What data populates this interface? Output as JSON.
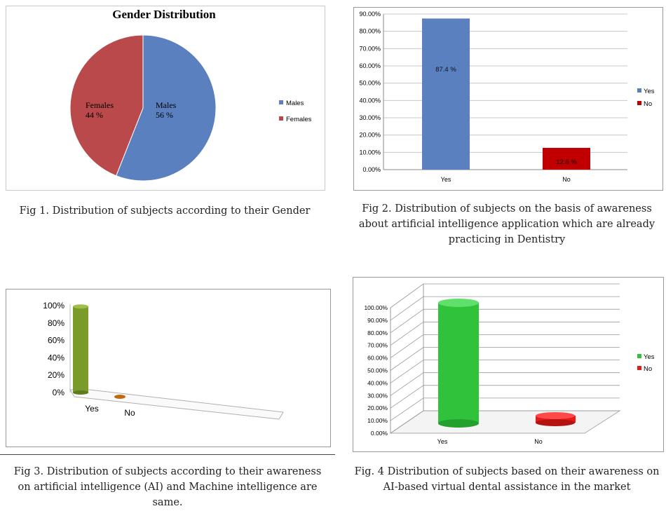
{
  "colors": {
    "males": "#5a80bf",
    "females": "#b9494a",
    "yes_blue": "#5a80bf",
    "no_red": "#c00000",
    "yes_olive": "#7a9a2a",
    "no_orange": "#c06a10",
    "yes_green": "#2fc23a",
    "no_red_bright": "#e21b1b"
  },
  "captions": {
    "fig1": "Fig 1. Distribution of subjects according to their Gender",
    "fig2_lines": [
      "Fig 2. Distribution of subjects on the basis of awareness",
      "about artificial intelligence application which are already",
      "practicing in Dentistry"
    ],
    "fig3_lines": [
      "Fig 3. Distribution of subjects according to their awareness",
      "on artificial intelligence (AI) and Machine intelligence are",
      "same."
    ],
    "fig4_lines": [
      "Fig. 4 Distribution of subjects based on their awareness on",
      "AI-based virtual dental assistance in the market"
    ]
  },
  "chart_data": [
    {
      "type": "pie",
      "title": "Gender Distribution",
      "categories": [
        "Males",
        "Females"
      ],
      "values": [
        56,
        44
      ],
      "data_labels": [
        [
          "Males",
          "56 %"
        ],
        [
          "Females",
          "44 %"
        ]
      ],
      "legend": [
        "Males",
        "Females"
      ],
      "legend_position": "right"
    },
    {
      "type": "bar",
      "categories": [
        "Yes",
        "No"
      ],
      "values": [
        87.4,
        12.6
      ],
      "data_labels": [
        "87.4 %",
        "12.6 %"
      ],
      "ylim": [
        0,
        90
      ],
      "yticks": [
        "0.00%",
        "10.00%",
        "20.00%",
        "30.00%",
        "40.00%",
        "50.00%",
        "60.00%",
        "70.00%",
        "80.00%",
        "90.00%"
      ],
      "legend": [
        "Yes",
        "No"
      ],
      "legend_position": "right",
      "grid": true
    },
    {
      "type": "bar",
      "style": "3d-cylinder",
      "categories": [
        "Yes",
        "No"
      ],
      "values": [
        99,
        1
      ],
      "ylim": [
        0,
        100
      ],
      "yticks": [
        "0%",
        "20%",
        "40%",
        "60%",
        "80%",
        "100%"
      ],
      "grid": false
    },
    {
      "type": "bar",
      "style": "3d-cylinder",
      "categories": [
        "Yes",
        "No"
      ],
      "values": [
        99,
        8
      ],
      "ylim": [
        0,
        100
      ],
      "yticks": [
        "0.00%",
        "10.00%",
        "20.00%",
        "30.00%",
        "40.00%",
        "50.00%",
        "60.00%",
        "70.00%",
        "80.00%",
        "90.00%",
        "100.00%"
      ],
      "legend": [
        "Yes",
        "No"
      ],
      "legend_position": "right",
      "grid": true
    }
  ]
}
